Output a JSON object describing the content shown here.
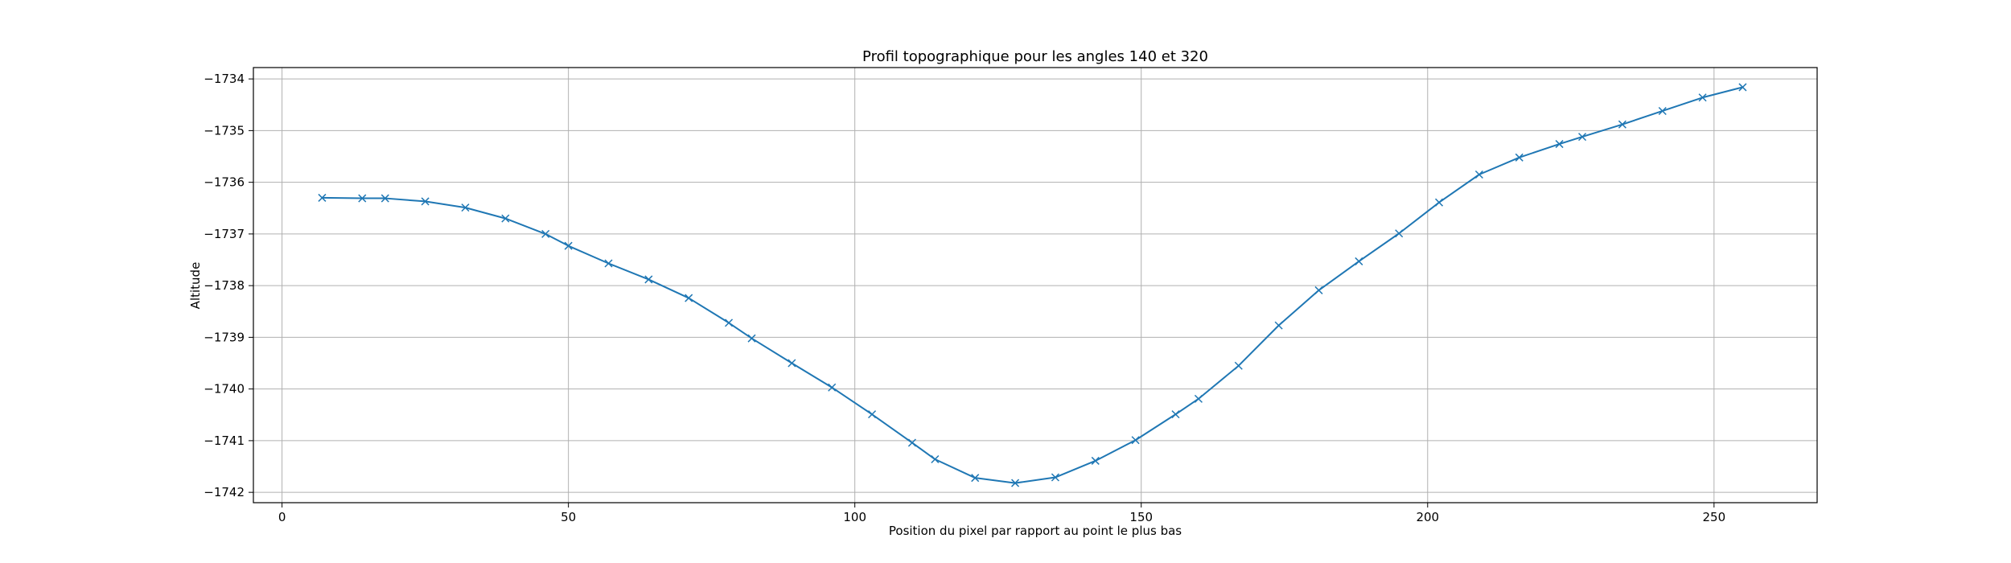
{
  "chart_data": {
    "type": "line",
    "title": "Profil topographique pour les angles 140 et 320",
    "xlabel": "Position du pixel par rapport au point le plus bas",
    "ylabel": "Altitude",
    "xlim": [
      -5,
      268
    ],
    "ylim": [
      -1742.2,
      -1733.78
    ],
    "x_ticks": [
      0,
      50,
      100,
      150,
      200,
      250
    ],
    "y_ticks": [
      -1742,
      -1741,
      -1740,
      -1739,
      -1738,
      -1737,
      -1736,
      -1735,
      -1734
    ],
    "grid": true,
    "legend": "none",
    "marker": "x",
    "colors": {
      "series": "#1f77b4"
    },
    "series": [
      {
        "x": [
          7,
          14,
          18,
          25,
          32,
          39,
          46,
          50,
          57,
          64,
          71,
          78,
          82,
          89,
          96,
          103,
          110,
          114,
          121,
          128,
          135,
          142,
          149,
          156,
          160,
          167,
          174,
          181,
          188,
          195,
          202,
          209,
          216,
          223,
          227,
          234,
          241,
          248,
          255
        ],
        "y": [
          -1736.3,
          -1736.31,
          -1736.31,
          -1736.37,
          -1736.49,
          -1736.7,
          -1737.0,
          -1737.23,
          -1737.57,
          -1737.88,
          -1738.24,
          -1738.72,
          -1739.02,
          -1739.5,
          -1739.97,
          -1740.49,
          -1741.04,
          -1741.36,
          -1741.72,
          -1741.82,
          -1741.71,
          -1741.39,
          -1740.99,
          -1740.49,
          -1740.19,
          -1739.55,
          -1738.77,
          -1738.09,
          -1737.53,
          -1736.99,
          -1736.39,
          -1735.85,
          -1735.52,
          -1735.26,
          -1735.12,
          -1734.88,
          -1734.62,
          -1734.36,
          -1734.16
        ]
      }
    ]
  }
}
